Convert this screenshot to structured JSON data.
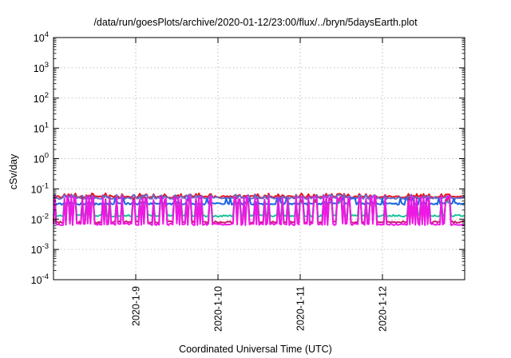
{
  "chart_data": {
    "type": "line",
    "title": "/data/run/goesPlots/archive/2020-01-12/23:00/flux/../bryn/5daysEarth.plot",
    "xlabel": "Coordinated Universal Time (UTC)",
    "ylabel": "cSv/day",
    "yscale": "log",
    "ylim": [
      0.0001,
      10000
    ],
    "yticks": [
      {
        "base": "10",
        "exp": "-4"
      },
      {
        "base": "10",
        "exp": "-3"
      },
      {
        "base": "10",
        "exp": "-2"
      },
      {
        "base": "10",
        "exp": "-1"
      },
      {
        "base": "10",
        "exp": "0"
      },
      {
        "base": "10",
        "exp": "1"
      },
      {
        "base": "10",
        "exp": "2"
      },
      {
        "base": "10",
        "exp": "3"
      },
      {
        "base": "10",
        "exp": "4"
      }
    ],
    "xlim": [
      "2020-01-08T00:00",
      "2020-01-13T00:00"
    ],
    "xticks": [
      "2020-1-9",
      "2020-1-10",
      "2020-1-11",
      "2020-1-12"
    ],
    "grid": true,
    "legend": "none",
    "series": [
      {
        "color": "#e8111b",
        "base": 0.055,
        "spike": 0.06
      },
      {
        "color": "#6a6cc8",
        "base": 0.05,
        "spike": 0.045
      },
      {
        "color": "#1a66e0",
        "base": 0.032,
        "spike": 0.05
      },
      {
        "color": "#19c39a",
        "base": 0.013,
        "spike": 0.04
      },
      {
        "color": "#c81e6a",
        "base": 0.008,
        "spike": 0.045
      },
      {
        "color": "#ee18e6",
        "base": 0.0068,
        "spike": 0.05
      }
    ]
  }
}
